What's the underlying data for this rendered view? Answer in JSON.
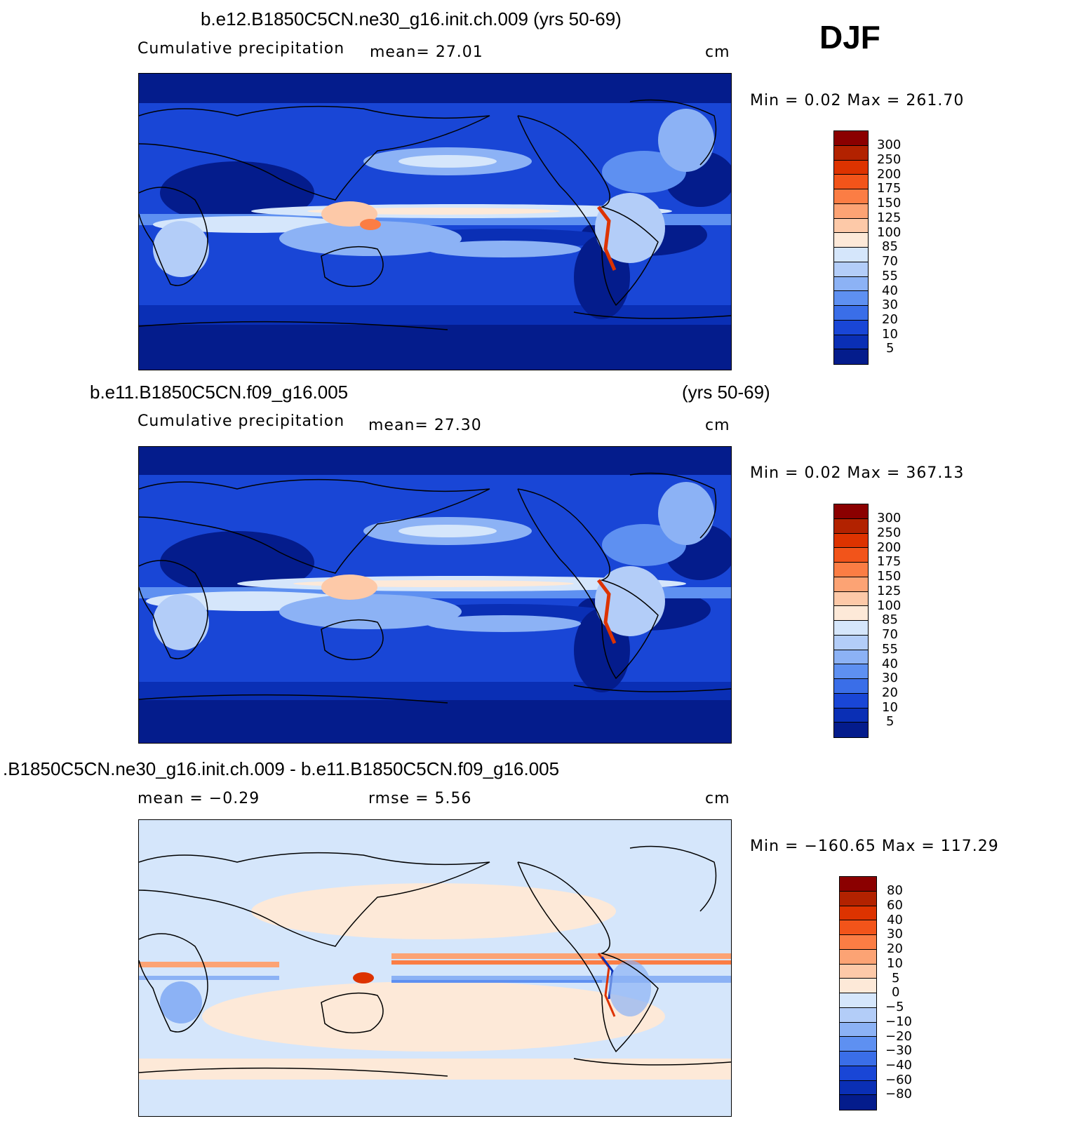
{
  "season": "DJF",
  "panels": [
    {
      "title": "b.e12.B1850C5CN.ne30_g16.init.ch.009 (yrs 50-69)",
      "title_right": "",
      "left_label": "Cumulative  precipitation",
      "mid_label": "mean=    27.01",
      "unit": "cm",
      "minmax": "Min  =      0.02  Max  =  261.70",
      "levels": [
        "300",
        "250",
        "200",
        "175",
        "150",
        "125",
        "100",
        "85",
        "70",
        "55",
        "40",
        "30",
        "20",
        "10",
        "5"
      ],
      "colors": [
        "#8b0000",
        "#b22200",
        "#dd3300",
        "#f2541a",
        "#fb7d44",
        "#fca374",
        "#fdc9a8",
        "#fde9d8",
        "#d5e6fb",
        "#b3cdf8",
        "#8cb2f5",
        "#5e90f1",
        "#3a6ee8",
        "#1946d6",
        "#0a2fb5",
        "#041c8c"
      ]
    },
    {
      "title": "b.e11.B1850C5CN.f09_g16.005",
      "title_right": "(yrs 50-69)",
      "left_label": "Cumulative  precipitation",
      "mid_label": "mean=    27.30",
      "unit": "cm",
      "minmax": "Min  =      0.02  Max  =  367.13",
      "levels": [
        "300",
        "250",
        "200",
        "175",
        "150",
        "125",
        "100",
        "85",
        "70",
        "55",
        "40",
        "30",
        "20",
        "10",
        "5"
      ],
      "colors": [
        "#8b0000",
        "#b22200",
        "#dd3300",
        "#f2541a",
        "#fb7d44",
        "#fca374",
        "#fdc9a8",
        "#fde9d8",
        "#d5e6fb",
        "#b3cdf8",
        "#8cb2f5",
        "#5e90f1",
        "#3a6ee8",
        "#1946d6",
        "#0a2fb5",
        "#041c8c"
      ]
    },
    {
      "title": ".B1850C5CN.ne30_g16.init.ch.009 - b.e11.B1850C5CN.f09_g16.005",
      "title_right": "",
      "left_label": "mean  =     −0.29",
      "mid_label": "rmse  =      5.56",
      "unit": "cm",
      "minmax": "Min  =  −160.65  Max  =  117.29",
      "levels": [
        "80",
        "60",
        "40",
        "30",
        "20",
        "10",
        "5",
        "0",
        "−5",
        "−10",
        "−20",
        "−30",
        "−40",
        "−60",
        "−80"
      ],
      "colors": [
        "#8b0000",
        "#b22200",
        "#dd3300",
        "#f2541a",
        "#fb7d44",
        "#fca374",
        "#fdc9a8",
        "#fde9d8",
        "#d5e6fb",
        "#b3cdf8",
        "#8cb2f5",
        "#5e90f1",
        "#3a6ee8",
        "#1946d6",
        "#0a2fb5",
        "#041c8c"
      ]
    }
  ]
}
